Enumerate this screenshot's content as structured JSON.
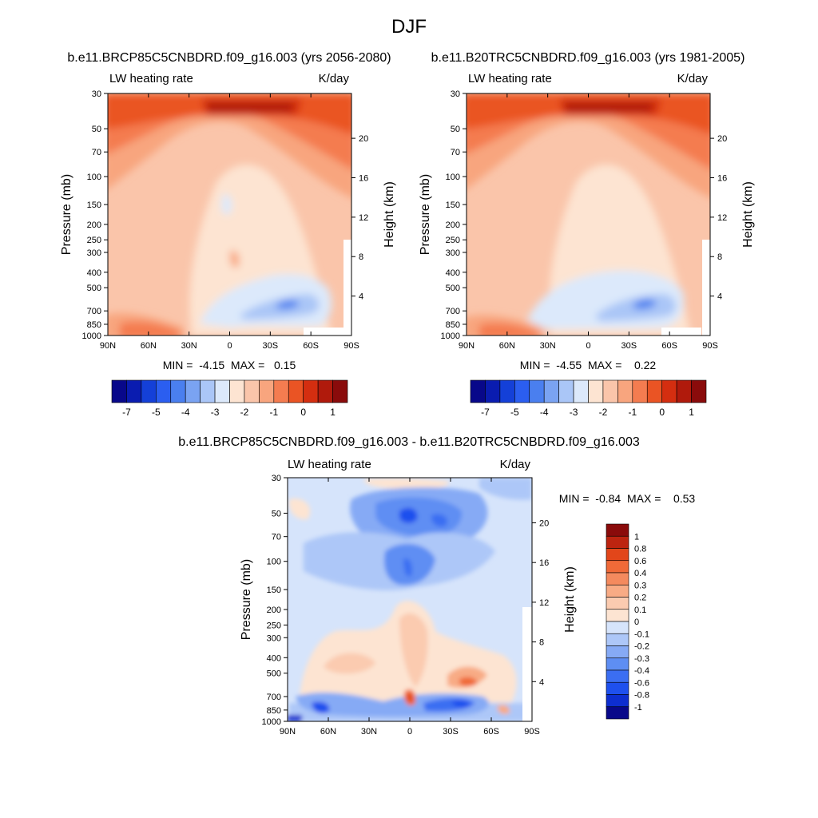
{
  "figure": {
    "title": "DJF"
  },
  "colors": {
    "abs_palette": [
      "#08088a",
      "#0a1cb0",
      "#1440d8",
      "#2b5ef0",
      "#4a7fef",
      "#7aa3f2",
      "#aac6f7",
      "#dce9fb",
      "#fde4d2",
      "#fac5aa",
      "#f8a57e",
      "#f47c50",
      "#ea5424",
      "#d42e10",
      "#b01a0c",
      "#8a0b0b"
    ],
    "diff_palette": [
      "#08088a",
      "#0d2ed0",
      "#1e50ee",
      "#3b6ef2",
      "#5e8ef3",
      "#86aaf5",
      "#adc7f8",
      "#d6e4fb",
      "#fde4d2",
      "#fbcbb0",
      "#f8ab85",
      "#f48a5e",
      "#f06a38",
      "#e2461a",
      "#bd2410",
      "#8a0b0b"
    ]
  },
  "chart_data": [
    {
      "type": "heatmap",
      "id": "future",
      "title": "b.e11.BRCP85C5CNBDRD.f09_g16.003 (yrs 2056-2080)",
      "left_label": "LW heating rate",
      "right_label": "K/day",
      "ylabel": "Pressure (mb)",
      "y2label": "Height (km)",
      "xlabel": "",
      "xticks": [
        "90N",
        "60N",
        "30N",
        "0",
        "30S",
        "60S",
        "90S"
      ],
      "yticks": [
        "30",
        "50",
        "70",
        "100",
        "150",
        "200",
        "250",
        "300",
        "400",
        "500",
        "700",
        "850",
        "1000"
      ],
      "y2ticks": [
        "20",
        "16",
        "12",
        "8",
        "4"
      ],
      "stats": "MIN =  -4.15  MAX =   0.15",
      "ylim": [
        1000,
        30
      ],
      "units": "K/day"
    },
    {
      "type": "heatmap",
      "id": "present",
      "title": "b.e11.B20TRC5CNBDRD.f09_g16.003 (yrs 1981-2005)",
      "left_label": "LW heating rate",
      "right_label": "K/day",
      "ylabel": "Pressure (mb)",
      "y2label": "Height (km)",
      "xlabel": "",
      "xticks": [
        "90N",
        "60N",
        "30N",
        "0",
        "30S",
        "60S",
        "90S"
      ],
      "yticks": [
        "30",
        "50",
        "70",
        "100",
        "150",
        "200",
        "250",
        "300",
        "400",
        "500",
        "700",
        "850",
        "1000"
      ],
      "y2ticks": [
        "20",
        "16",
        "12",
        "8",
        "4"
      ],
      "stats": "MIN =  -4.55  MAX =    0.22",
      "ylim": [
        1000,
        30
      ],
      "units": "K/day"
    },
    {
      "type": "heatmap",
      "id": "difference",
      "title": "b.e11.BRCP85C5CNBDRD.f09_g16.003 - b.e11.B20TRC5CNBDRD.f09_g16.003",
      "left_label": "LW heating rate",
      "right_label": "K/day",
      "ylabel": "Pressure (mb)",
      "y2label": "Height (km)",
      "xlabel": "",
      "xticks": [
        "90N",
        "60N",
        "30N",
        "0",
        "30S",
        "60S",
        "90S"
      ],
      "yticks": [
        "30",
        "50",
        "70",
        "100",
        "150",
        "200",
        "250",
        "300",
        "400",
        "500",
        "700",
        "850",
        "1000"
      ],
      "y2ticks": [
        "20",
        "16",
        "12",
        "8",
        "4"
      ],
      "stats": "MIN =  -0.84  MAX =    0.53",
      "ylim": [
        1000,
        30
      ],
      "units": "K/day"
    }
  ],
  "colorbars": {
    "abs_labels": [
      "-7",
      "-5",
      "-4",
      "-3",
      "-2",
      "-1",
      "0",
      "1"
    ],
    "diff_labels": [
      "1",
      "0.8",
      "0.6",
      "0.4",
      "0.3",
      "0.2",
      "0.1",
      "0",
      "-0.1",
      "-0.2",
      "-0.3",
      "-0.4",
      "-0.6",
      "-0.8",
      "-1"
    ]
  }
}
